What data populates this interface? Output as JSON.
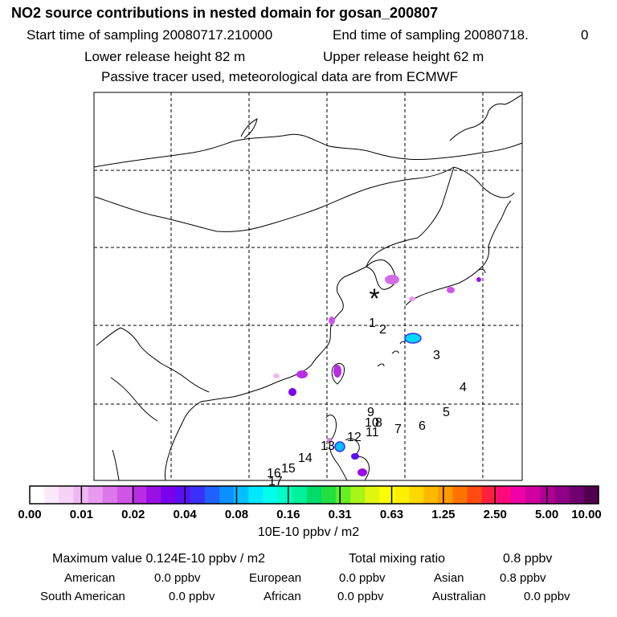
{
  "header": {
    "title": "NO2 source contributions in nested domain for gosan_200807",
    "start_label": "Start time of sampling 20080717.210000",
    "end_label": "End time of sampling 20080718.",
    "end_value": "0",
    "lower_label": "Lower release height   82 m",
    "upper_label": "Upper release height   62 m",
    "tracer_note": "Passive tracer used, meteorological data are from ECMWF"
  },
  "map": {
    "receptor_symbol": "*",
    "trajectory_points": [
      "1",
      "2",
      "3",
      "4",
      "5",
      "6",
      "7",
      "8",
      "9",
      "10",
      "11",
      "12",
      "13",
      "14",
      "15",
      "16",
      "17"
    ]
  },
  "colorbar": {
    "colors": [
      "#ffffff",
      "#fbe8fb",
      "#f6d2f6",
      "#f0b8f2",
      "#e79aee",
      "#dc78ea",
      "#cf55e6",
      "#b92ee4",
      "#9a10e4",
      "#7a00ee",
      "#5a10f5",
      "#3a30fb",
      "#2060ff",
      "#0a90ff",
      "#00c0ff",
      "#00e8ff",
      "#00ffec",
      "#00ffc4",
      "#00f29a",
      "#00dc6a",
      "#22e040",
      "#66ee22",
      "#a8f51a",
      "#e0f810",
      "#ffff00",
      "#fff000",
      "#ffd800",
      "#ffba00",
      "#ff9a00",
      "#ff7400",
      "#ff4a10",
      "#ff2040",
      "#ff0a7a",
      "#f000a6",
      "#d000a0",
      "#b00094",
      "#900086",
      "#700070",
      "#50004e"
    ],
    "tick_labels": [
      "0.00",
      "0.01",
      "0.02",
      "0.04",
      "0.08",
      "0.16",
      "0.31",
      "0.63",
      "1.25",
      "2.50",
      "5.00",
      "10.00"
    ],
    "unit": "10E-10 ppbv / m2"
  },
  "stats": {
    "max_value": "Maximum value  0.124E-10 ppbv / m2",
    "total_label": "Total mixing ratio",
    "total_value": "0.8 ppbv"
  },
  "regions": [
    {
      "name": "American",
      "value": "0.0 ppbv"
    },
    {
      "name": "European",
      "value": "0.0 ppbv"
    },
    {
      "name": "Asian",
      "value": "0.8 ppbv"
    },
    {
      "name": "South American",
      "value": "0.0 ppbv"
    },
    {
      "name": "African",
      "value": "0.0 ppbv"
    },
    {
      "name": "Australian",
      "value": "0.0 ppbv"
    }
  ]
}
